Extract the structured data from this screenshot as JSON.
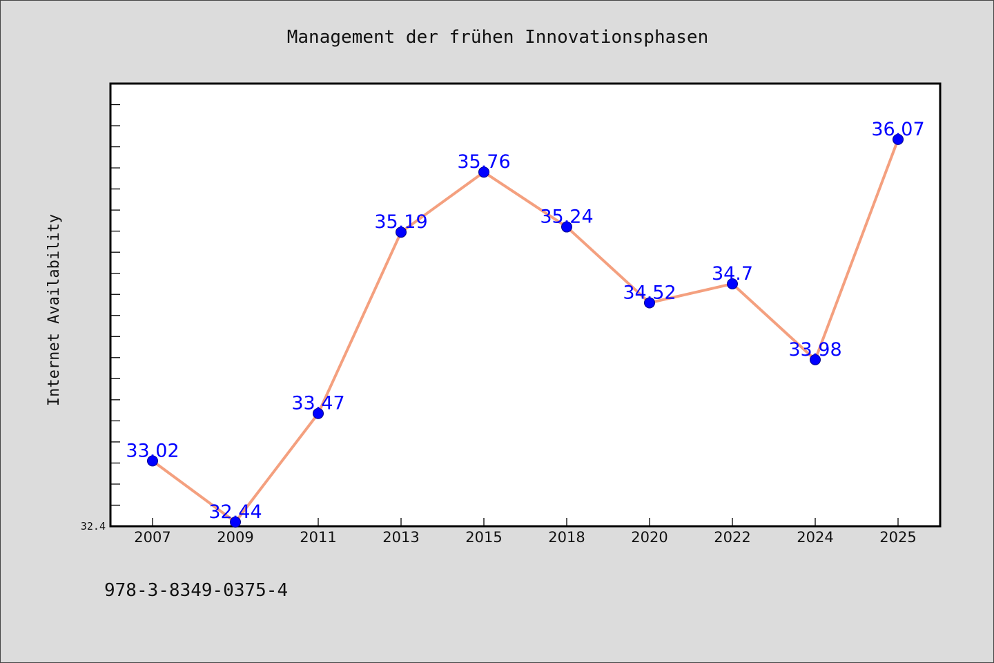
{
  "chart_data": {
    "type": "line",
    "title": "Management der frühen Innovationsphasen",
    "xlabel": "",
    "ylabel": "Internet Availability",
    "categories": [
      "2007",
      "2009",
      "2011",
      "2013",
      "2015",
      "2018",
      "2020",
      "2022",
      "2024",
      "2025"
    ],
    "series": [
      {
        "values": [
          33.02,
          32.44,
          33.47,
          35.19,
          35.76,
          35.24,
          34.52,
          34.7,
          33.98,
          36.07
        ],
        "labels": [
          "33.02",
          "32.44",
          "33.47",
          "35.19",
          "35.76",
          "35.24",
          "34.52",
          "34.7",
          "33.98",
          "36.07"
        ]
      }
    ],
    "ylim": [
      32.4,
      36.6
    ],
    "y_tick_labels": [
      "32.4"
    ],
    "grid": false,
    "legend": "none",
    "colors": {
      "line": "#f4a07f",
      "marker": "#0000ff",
      "marker_edge": "#00008b",
      "data_label": "#0000ff",
      "plot_background": "#ffffff",
      "figure_background": "#dcdcdc"
    }
  },
  "footer": {
    "isbn": "978-3-8349-0375-4"
  }
}
